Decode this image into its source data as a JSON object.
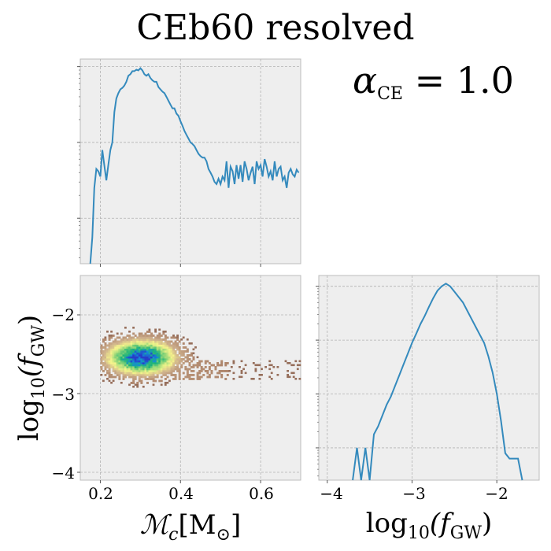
{
  "title": "CEb60 resolved",
  "annotation": {
    "alpha_sym": "α",
    "alpha_sub": "CE",
    "alpha_rest": " = 1.0"
  },
  "colors": {
    "line": "#348abd",
    "panel": "#eeeeee",
    "grid": "#b2b2b2"
  },
  "chart_data": [
    {
      "type": "line",
      "panel": "top-left marginal",
      "x_axis": "Mc",
      "xlim": [
        0.15,
        0.7
      ],
      "yscale": "log",
      "ylim_log10": [
        -2.6,
        0.1
      ],
      "grid": true,
      "x": [
        0.175,
        0.18,
        0.185,
        0.19,
        0.195,
        0.2,
        0.205,
        0.21,
        0.215,
        0.22,
        0.225,
        0.23,
        0.235,
        0.24,
        0.245,
        0.25,
        0.255,
        0.26,
        0.265,
        0.27,
        0.275,
        0.28,
        0.285,
        0.29,
        0.295,
        0.3,
        0.305,
        0.31,
        0.315,
        0.32,
        0.325,
        0.33,
        0.335,
        0.34,
        0.345,
        0.35,
        0.355,
        0.36,
        0.365,
        0.37,
        0.375,
        0.38,
        0.385,
        0.39,
        0.395,
        0.4,
        0.405,
        0.41,
        0.415,
        0.42,
        0.425,
        0.43,
        0.435,
        0.44,
        0.445,
        0.45,
        0.455,
        0.46,
        0.465,
        0.47,
        0.475,
        0.48,
        0.485,
        0.49,
        0.495,
        0.5,
        0.505,
        0.51,
        0.515,
        0.52,
        0.525,
        0.53,
        0.535,
        0.54,
        0.545,
        0.55,
        0.555,
        0.56,
        0.565,
        0.57,
        0.575,
        0.58,
        0.585,
        0.59,
        0.595,
        0.6,
        0.605,
        0.61,
        0.615,
        0.62,
        0.625,
        0.63,
        0.635,
        0.64,
        0.645,
        0.65,
        0.655,
        0.66,
        0.665,
        0.67,
        0.675,
        0.68,
        0.685,
        0.69,
        0.695
      ],
      "y_log10": [
        -2.6,
        -2.25,
        -1.6,
        -1.35,
        -1.38,
        -1.45,
        -1.1,
        -1.3,
        -1.5,
        -1.3,
        -1.1,
        -1.0,
        -0.6,
        -0.42,
        -0.35,
        -0.3,
        -0.28,
        -0.25,
        -0.2,
        -0.12,
        -0.1,
        -0.06,
        -0.06,
        -0.04,
        -0.05,
        -0.02,
        -0.05,
        -0.1,
        -0.12,
        -0.1,
        -0.15,
        -0.18,
        -0.2,
        -0.2,
        -0.27,
        -0.3,
        -0.33,
        -0.35,
        -0.4,
        -0.45,
        -0.5,
        -0.55,
        -0.55,
        -0.62,
        -0.65,
        -0.72,
        -0.78,
        -0.85,
        -0.9,
        -0.95,
        -1.0,
        -1.02,
        -1.05,
        -1.1,
        -1.15,
        -1.18,
        -1.2,
        -1.2,
        -1.25,
        -1.35,
        -1.4,
        -1.45,
        -1.52,
        -1.55,
        -1.48,
        -1.55,
        -1.45,
        -1.5,
        -1.25,
        -1.6,
        -1.32,
        -1.38,
        -1.55,
        -1.3,
        -1.48,
        -1.3,
        -1.52,
        -1.25,
        -1.35,
        -1.5,
        -1.4,
        -1.32,
        -1.55,
        -1.25,
        -1.35,
        -1.3,
        -1.45,
        -1.22,
        -1.32,
        -1.45,
        -1.38,
        -1.5,
        -1.25,
        -1.45,
        -1.35,
        -1.32,
        -1.5,
        -1.45,
        -1.6,
        -1.4,
        -1.35,
        -1.42,
        -1.45,
        -1.36,
        -1.4
      ]
    },
    {
      "type": "heatmap",
      "panel": "bottom-left joint distribution",
      "x_axis": "Mc",
      "y_axis": "log10(fGW)",
      "xlim": [
        0.15,
        0.7
      ],
      "ylim": [
        -4.1,
        -1.5
      ],
      "colormap": "terrain",
      "grid": true,
      "density_peak": {
        "x": 0.3,
        "y": -2.55
      },
      "xticks": [
        "0.2",
        "0.4",
        "0.6"
      ],
      "yticks": [
        "−2",
        "−3",
        "−4"
      ],
      "xlabel_parts": [
        "ℳ",
        "c",
        "[M",
        "⊙",
        "]"
      ],
      "ylabel_parts": [
        "log",
        "10",
        "(f",
        "GW",
        ")"
      ]
    },
    {
      "type": "line",
      "panel": "bottom-right marginal",
      "x_axis": "log10(fGW)",
      "xlim": [
        -4.1,
        -1.5
      ],
      "yscale": "log",
      "ylim_log10": [
        -3.6,
        0.2
      ],
      "grid": true,
      "xticks": [
        "−4",
        "−3",
        "−2"
      ],
      "xlabel_parts": [
        "log",
        "10",
        "(f",
        "GW",
        ")"
      ],
      "x": [
        -3.7,
        -3.65,
        -3.6,
        -3.55,
        -3.5,
        -3.45,
        -3.4,
        -3.35,
        -3.3,
        -3.25,
        -3.2,
        -3.15,
        -3.1,
        -3.05,
        -3.0,
        -2.95,
        -2.9,
        -2.85,
        -2.8,
        -2.75,
        -2.7,
        -2.65,
        -2.6,
        -2.55,
        -2.5,
        -2.45,
        -2.4,
        -2.35,
        -2.3,
        -2.25,
        -2.2,
        -2.15,
        -2.1,
        -2.05,
        -2.0,
        -1.95,
        -1.9,
        -1.85,
        -1.8,
        -1.75,
        -1.7
      ],
      "y_log10": [
        -3.6,
        -3.0,
        -3.6,
        -3.0,
        -3.6,
        -2.75,
        -2.6,
        -2.4,
        -2.2,
        -2.05,
        -1.85,
        -1.65,
        -1.45,
        -1.25,
        -1.05,
        -0.88,
        -0.7,
        -0.55,
        -0.38,
        -0.22,
        -0.08,
        0.0,
        0.05,
        0.0,
        -0.1,
        -0.2,
        -0.3,
        -0.45,
        -0.6,
        -0.75,
        -0.9,
        -1.05,
        -1.3,
        -1.6,
        -2.0,
        -2.5,
        -3.1,
        -3.2,
        -3.2,
        -3.2,
        -3.6
      ]
    }
  ]
}
